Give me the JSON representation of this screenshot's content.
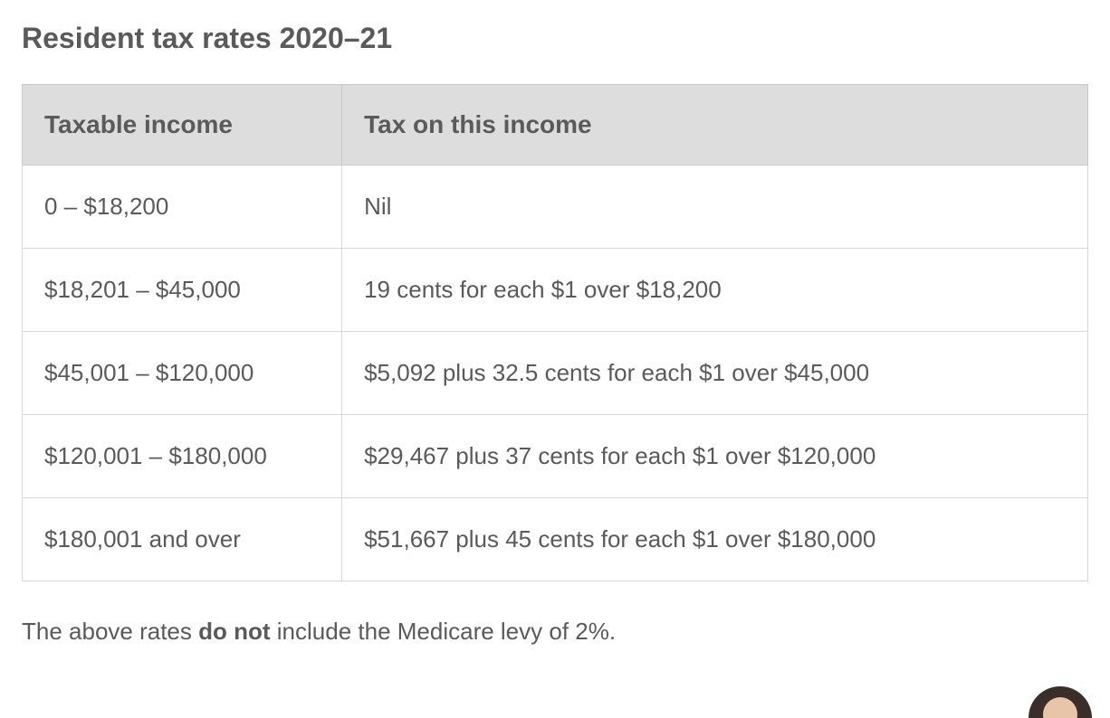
{
  "title": "Resident tax rates 2020–21",
  "table": {
    "columns": [
      "Taxable income",
      "Tax on this income"
    ],
    "rows": [
      [
        "0 – $18,200",
        "Nil"
      ],
      [
        "$18,201 – $45,000",
        "19  cents for each $1 over $18,200"
      ],
      [
        "$45,001 – $120,000",
        "$5,092 plus 32.5  cents for each $1 over $45,000"
      ],
      [
        "$120,001 – $180,000",
        "$29,467  plus 37  cents for each $1 over $120,000"
      ],
      [
        "$180,001 and over",
        "$51,667  plus 45  cents for each $1 over $180,000"
      ]
    ],
    "header_bg": "#dcdddc",
    "header_color": "#5a5a5a",
    "header_fontsize": 28,
    "cell_bg": "#ffffff",
    "cell_color": "#5a5a5a",
    "cell_fontsize": 26,
    "border_color": "#d8d8d8",
    "col0_width_pct": 30
  },
  "footnote": {
    "prefix": "The above rates ",
    "bold": "do not",
    "suffix": " include the Medicare levy of 2%."
  },
  "styling": {
    "background_color": "#ffffff",
    "title_color": "#5a5a5a",
    "title_fontsize": 32,
    "font_family": "Helvetica Neue"
  }
}
